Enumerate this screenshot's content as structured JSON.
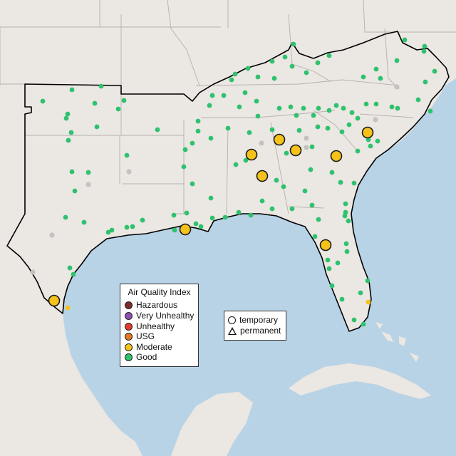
{
  "legend": {
    "title": "Air Quality Index",
    "categories": [
      {
        "label": "Hazardous",
        "color": "#7e2a2c"
      },
      {
        "label": "Very Unhealthy",
        "color": "#8f4fb4"
      },
      {
        "label": "Unhealthy",
        "color": "#e03c2e"
      },
      {
        "label": "USG",
        "color": "#e07a1c"
      },
      {
        "label": "Moderate",
        "color": "#f5c21a"
      },
      {
        "label": "Good",
        "color": "#2ec26e"
      }
    ]
  },
  "site_legend": {
    "temporary_label": "temporary",
    "permanent_label": "permanent"
  },
  "colors": {
    "ocean": "#b9d3e6",
    "land": "#ebe7e2",
    "good": "#2ec26e",
    "moderate": "#f5c21a",
    "no_data": "#c2c2c2",
    "region_outline": "#000000"
  },
  "monitors": {
    "moderate_count": 10,
    "no_data_count": 9
  }
}
